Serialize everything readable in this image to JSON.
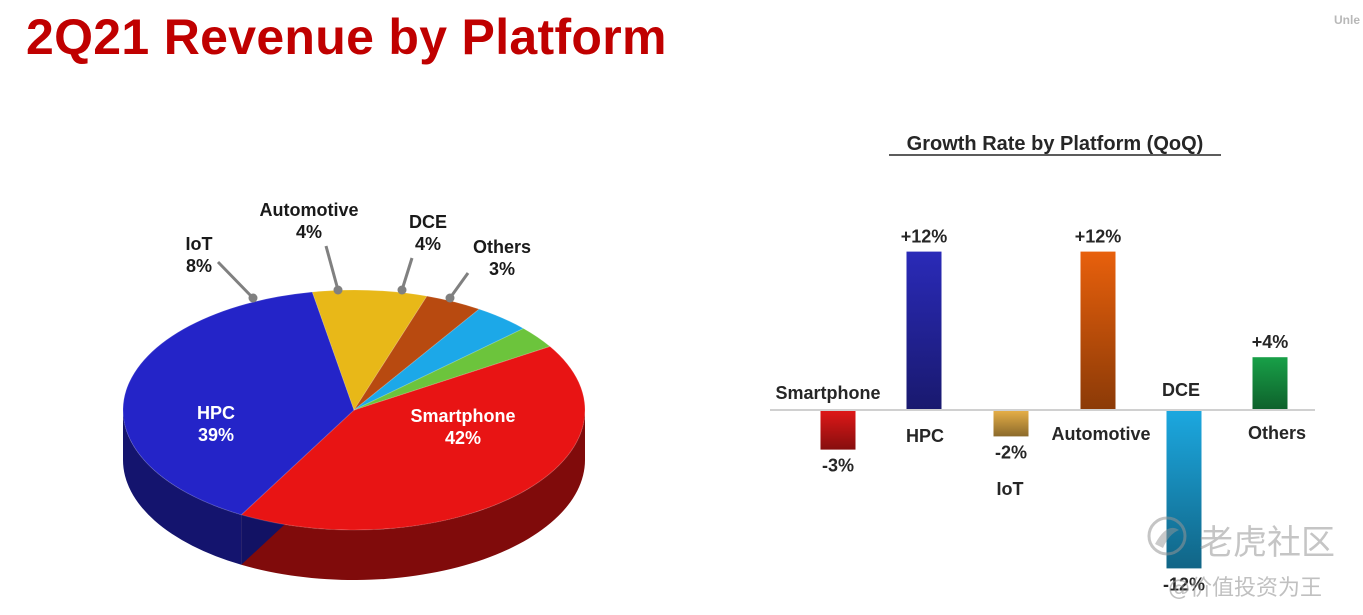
{
  "page": {
    "title": "2Q21 Revenue by Platform",
    "corner_text": "Unle"
  },
  "chart_data": [
    {
      "type": "pie",
      "title": "",
      "slices": [
        {
          "label": "Smartphone",
          "value": 42,
          "value_label": "42%",
          "color": "#e81414"
        },
        {
          "label": "HPC",
          "value": 39,
          "value_label": "39%",
          "color": "#2424c8"
        },
        {
          "label": "IoT",
          "value": 8,
          "value_label": "8%",
          "color": "#e8b818"
        },
        {
          "label": "Automotive",
          "value": 4,
          "value_label": "4%",
          "color": "#b84a10"
        },
        {
          "label": "DCE",
          "value": 4,
          "value_label": "4%",
          "color": "#1ca8e8"
        },
        {
          "label": "Others",
          "value": 3,
          "value_label": "3%",
          "color": "#6cc43c"
        }
      ]
    },
    {
      "type": "bar",
      "title": "Growth Rate by Platform (QoQ)",
      "xlabel": "",
      "ylabel": "",
      "categories": [
        "Smartphone",
        "HPC",
        "IoT",
        "Automotive",
        "DCE",
        "Others"
      ],
      "values": [
        -3,
        12,
        -2,
        12,
        -12,
        4
      ],
      "value_labels": [
        "-3%",
        "+12%",
        "-2%",
        "+12%",
        "-12%",
        "+4%"
      ],
      "colors": [
        "#e01818",
        "#2a2ab8",
        "#e8b048",
        "#e8600c",
        "#1ca8e0",
        "#18a048"
      ]
    }
  ],
  "watermark": {
    "name": "老虎社区",
    "slogan": "@价值投资为王"
  }
}
